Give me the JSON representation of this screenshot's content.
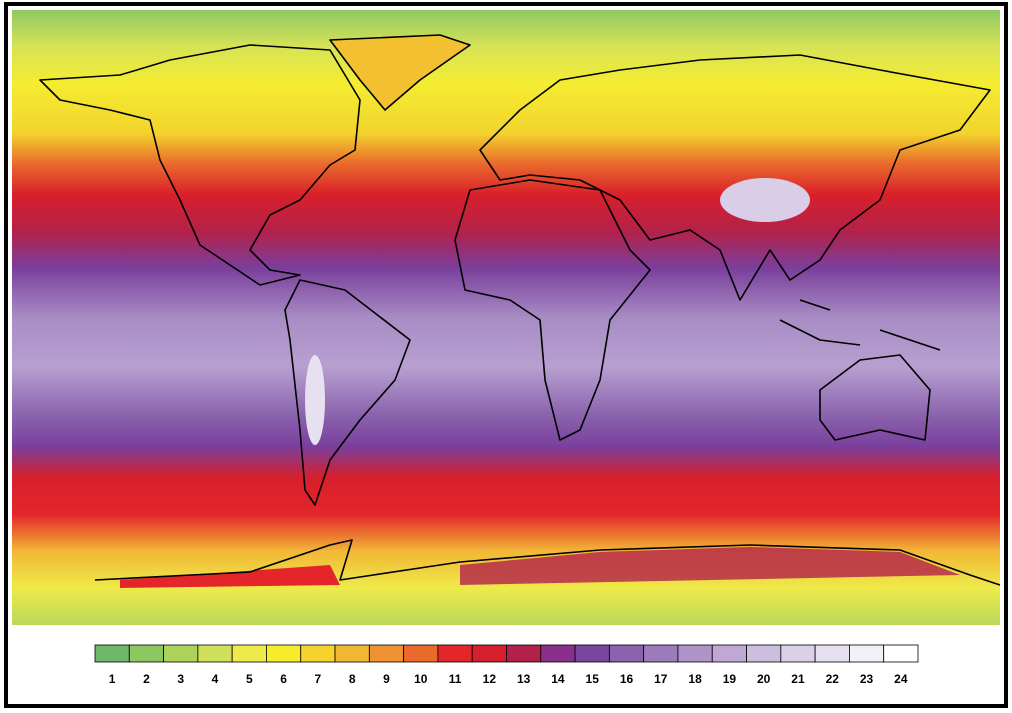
{
  "legend": {
    "labels": [
      "1",
      "2",
      "3",
      "4",
      "5",
      "6",
      "7",
      "8",
      "9",
      "10",
      "11",
      "12",
      "13",
      "14",
      "15",
      "16",
      "17",
      "18",
      "19",
      "20",
      "21",
      "22",
      "23",
      "24"
    ],
    "colors": [
      "#6db86b",
      "#8dc760",
      "#aed35a",
      "#cfe05a",
      "#eeea4a",
      "#f7ec2c",
      "#f5d22d",
      "#f2b736",
      "#ee9234",
      "#ea6a2c",
      "#e4262a",
      "#d61f2c",
      "#b3214a",
      "#8a2f8c",
      "#7a45a0",
      "#8b62ad",
      "#9d7cbc",
      "#ae94c8",
      "#bfa9d4",
      "#cdbddf",
      "#dad0e8",
      "#e7e0f0",
      "#f3eff8",
      "#ffffff"
    ]
  }
}
